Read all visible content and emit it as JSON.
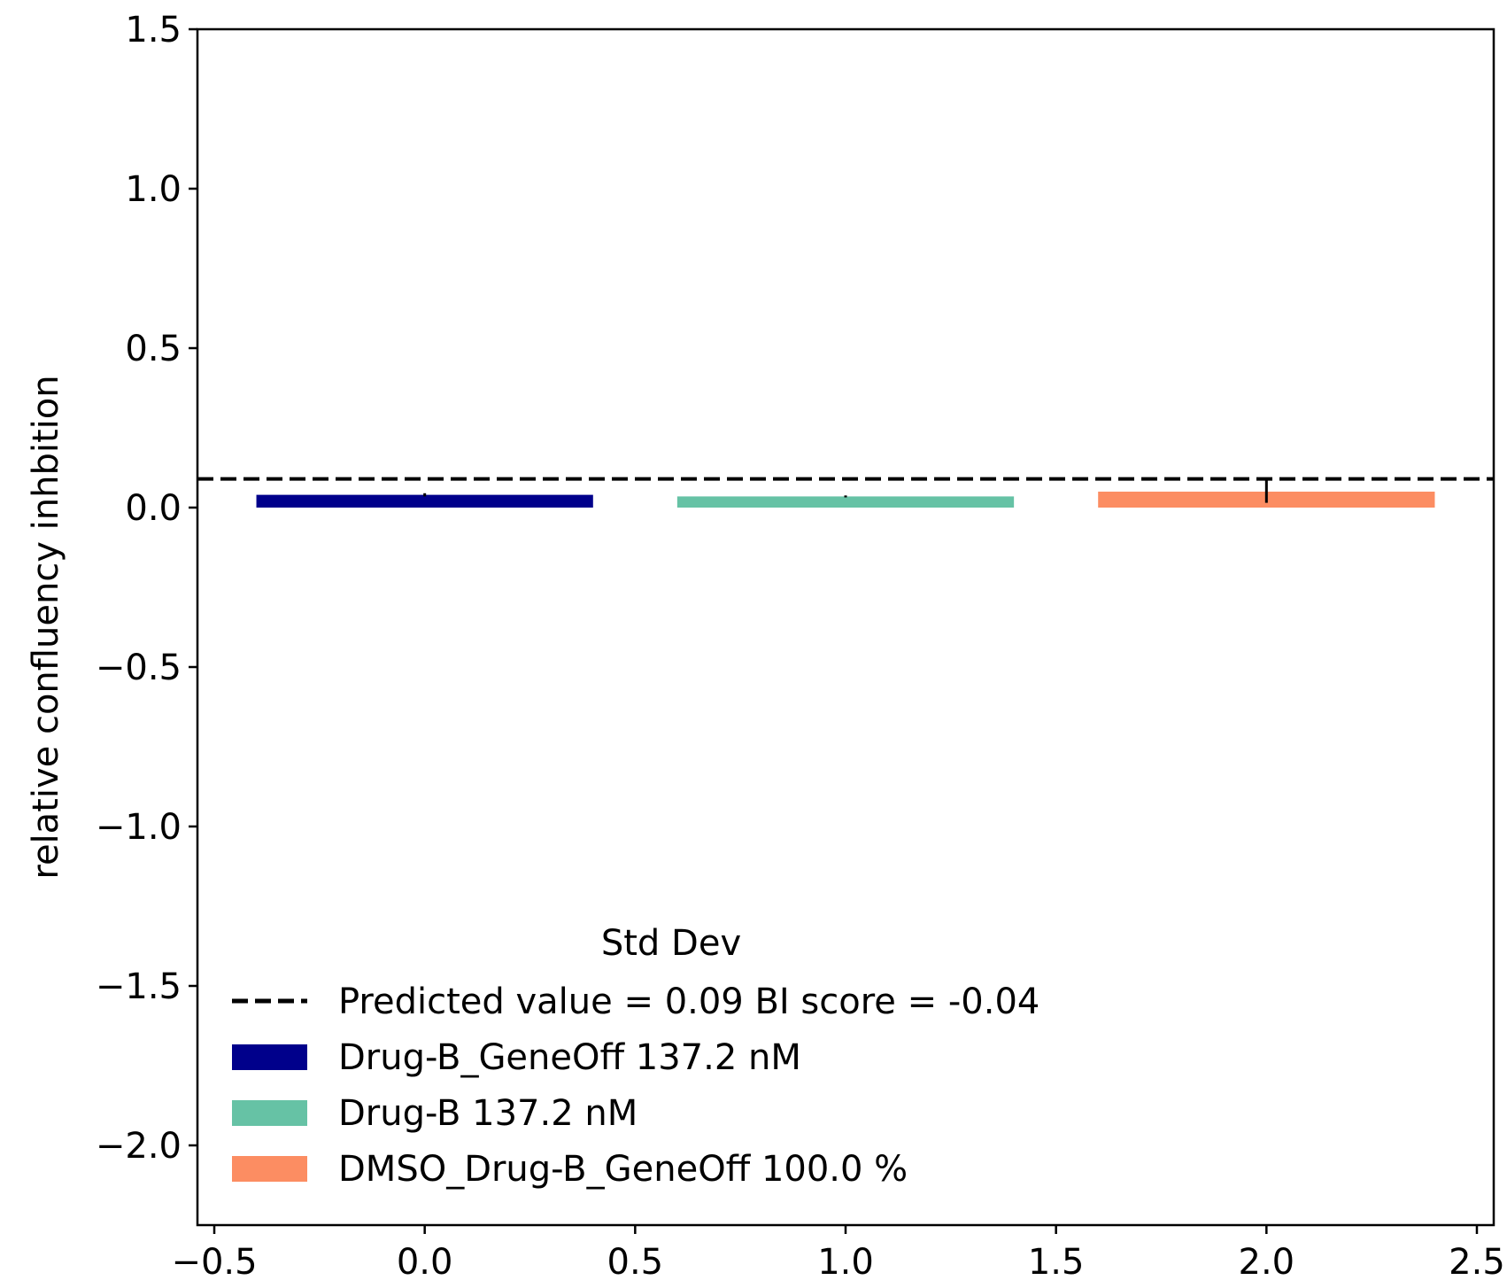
{
  "chart_data": {
    "type": "bar",
    "title": "",
    "xlabel": "",
    "ylabel": "relative confluency inhbition",
    "xlim": [
      -0.54,
      2.54
    ],
    "ylim": [
      -2.25,
      1.5
    ],
    "xticks": [
      -0.5,
      0.0,
      0.5,
      1.0,
      1.5,
      2.0,
      2.5
    ],
    "xtick_labels": [
      "−0.5",
      "0.0",
      "0.5",
      "1.0",
      "1.5",
      "2.0",
      "2.5"
    ],
    "yticks": [
      1.5,
      1.0,
      0.5,
      0.0,
      -0.5,
      -1.0,
      -1.5,
      -2.0
    ],
    "ytick_labels": [
      "1.5",
      "1.0",
      "0.5",
      "0.0",
      "−0.5",
      "−1.0",
      "−1.5",
      "−2.0"
    ],
    "grid": false,
    "bar_width": 0.8,
    "series": [
      {
        "name": "Drug-B_GeneOff 137.2 nM",
        "x": 0,
        "value": 0.04,
        "error": 0.005,
        "color": "#00008b"
      },
      {
        "name": "Drug-B 137.2 nM",
        "x": 1,
        "value": 0.035,
        "error": 0.003,
        "color": "#66c2a5"
      },
      {
        "name": "DMSO_Drug-B_GeneOff 100.0 %",
        "x": 2,
        "value": 0.05,
        "error": 0.035,
        "color": "#fc8d62"
      }
    ],
    "reference_line": {
      "name": "Predicted value = 0.09 BI score = -0.04",
      "value": 0.09,
      "style": "dashed",
      "color": "#000000"
    },
    "legend": {
      "title": "Std Dev",
      "placement": "lower-left"
    }
  }
}
